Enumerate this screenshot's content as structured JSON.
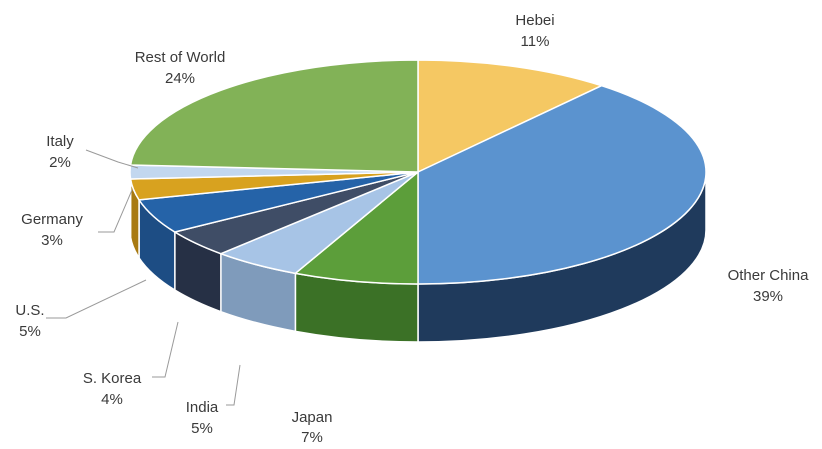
{
  "chart_data": {
    "type": "pie",
    "title": "",
    "slices": [
      {
        "label": "Hebei",
        "pct_label": "11%",
        "value": 11,
        "top": "#f5c863",
        "side": "#c99a33"
      },
      {
        "label": "Other China",
        "pct_label": "39%",
        "value": 39,
        "top": "#5b93cf",
        "side": "#1f3a5c"
      },
      {
        "label": "Japan",
        "pct_label": "7%",
        "value": 7,
        "top": "#5c9e3a",
        "side": "#3b7126"
      },
      {
        "label": "India",
        "pct_label": "5%",
        "value": 5,
        "top": "#a7c4e6",
        "side": "#7f9bbb"
      },
      {
        "label": "S. Korea",
        "pct_label": "4%",
        "value": 4,
        "top": "#3f4d66",
        "side": "#263045"
      },
      {
        "label": "U.S.",
        "pct_label": "5%",
        "value": 5,
        "top": "#2563a8",
        "side": "#1d4d84"
      },
      {
        "label": "Germany",
        "pct_label": "3%",
        "value": 3,
        "top": "#d8a21f",
        "side": "#a87a12"
      },
      {
        "label": "Italy",
        "pct_label": "2%",
        "value": 2,
        "top": "#c2d7ef",
        "side": "#9eb6d2"
      },
      {
        "label": "Rest of World",
        "pct_label": "24%",
        "value": 24,
        "top": "#82b257",
        "side": "#5f8a3c"
      }
    ]
  }
}
